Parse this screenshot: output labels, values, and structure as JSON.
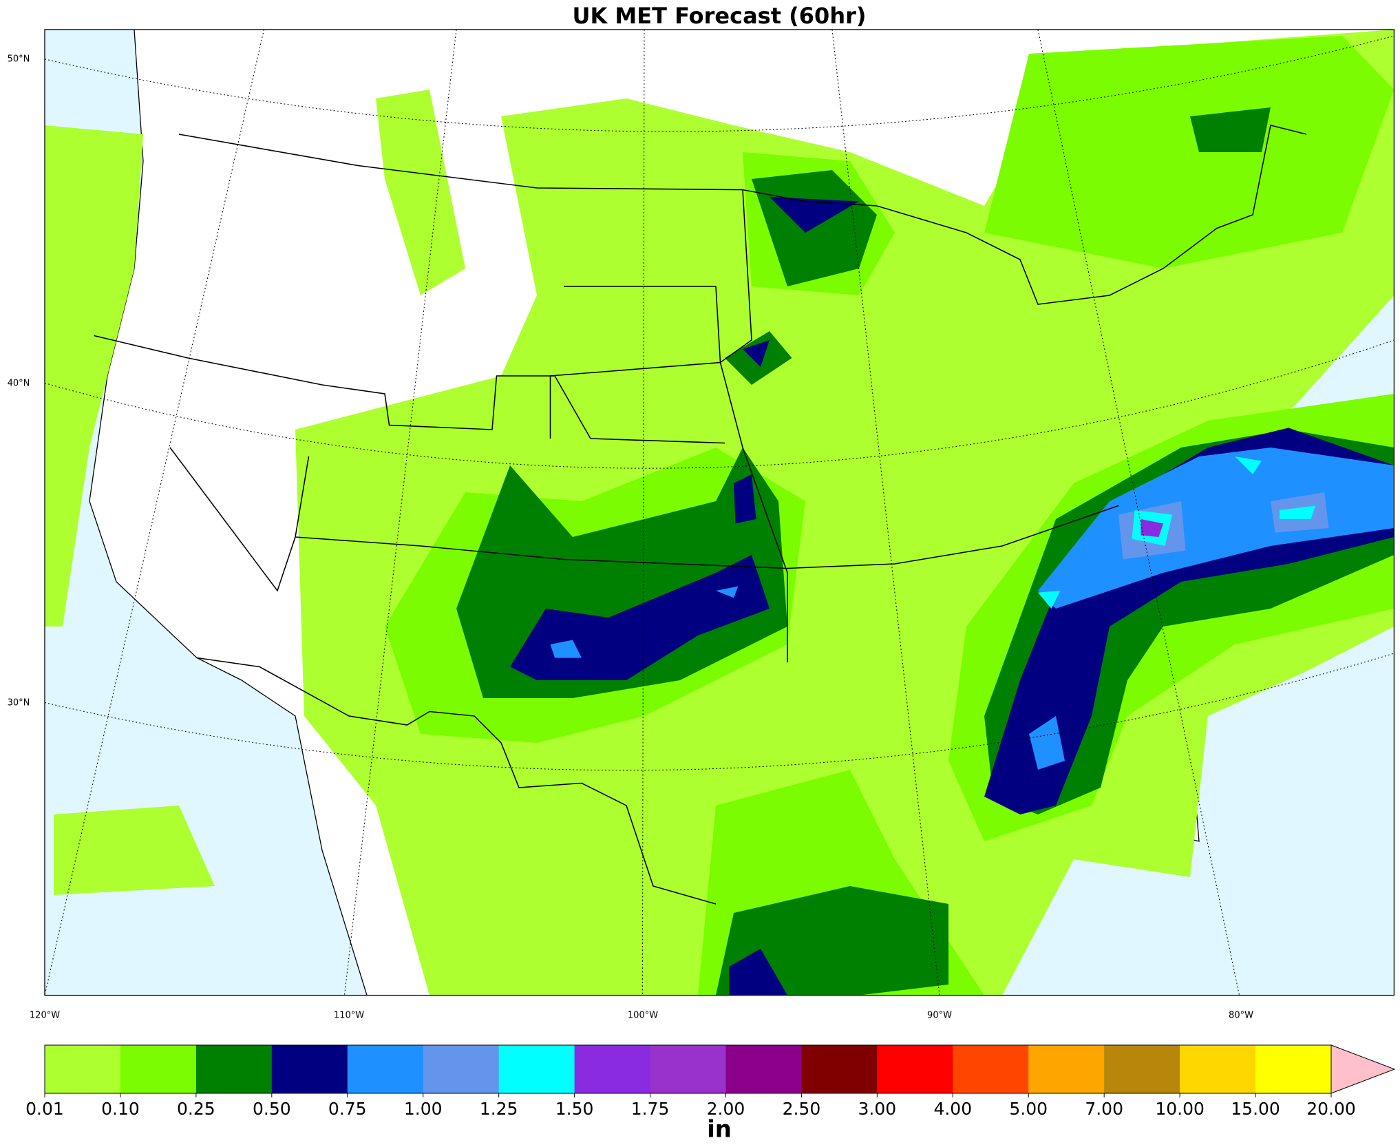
{
  "title": "UK MET Forecast (60hr)",
  "map": {
    "lat_labels": [
      "50°N",
      "40°N",
      "30°N"
    ],
    "lon_labels": [
      "120°W",
      "110°W",
      "100°W",
      "90°W",
      "80°W"
    ]
  },
  "colorbar": {
    "ticks": [
      0.01,
      {
        "value": 0.1,
        "label": "0.10"
      },
      0.25,
      {
        "value": 0.5,
        "label": "0.50"
      },
      0.75,
      {
        "value": 1,
        "label": "1.00"
      },
      1.25,
      {
        "value": 1.5,
        "label": "1.50"
      },
      1.75,
      {
        "value": 2,
        "label": "2.00"
      },
      {
        "value": 2.5,
        "label": "2.50"
      },
      {
        "value": 3,
        "label": "3.00"
      },
      {
        "value": 4,
        "label": "4.00"
      },
      {
        "value": 5,
        "label": "5.00"
      },
      {
        "value": 7,
        "label": "7.00"
      },
      {
        "value": 10,
        "label": "10.00"
      },
      {
        "value": 15,
        "label": "15.00"
      },
      {
        "value": 20,
        "label": "20.00"
      }
    ],
    "colors": [
      "#adff2f",
      "#7cfc00",
      "#008000",
      "#000080",
      "#1e90ff",
      "#6495ed",
      "#00ffff",
      "#8a2be2",
      "#9932cc",
      "#8b008b",
      "#800000",
      "#ff0000",
      "#ff4500",
      "#ffa500",
      "#b8860b",
      "#ffd700",
      "#ffff00"
    ],
    "extend_color": "#ffc0cb",
    "unit": "in"
  }
}
